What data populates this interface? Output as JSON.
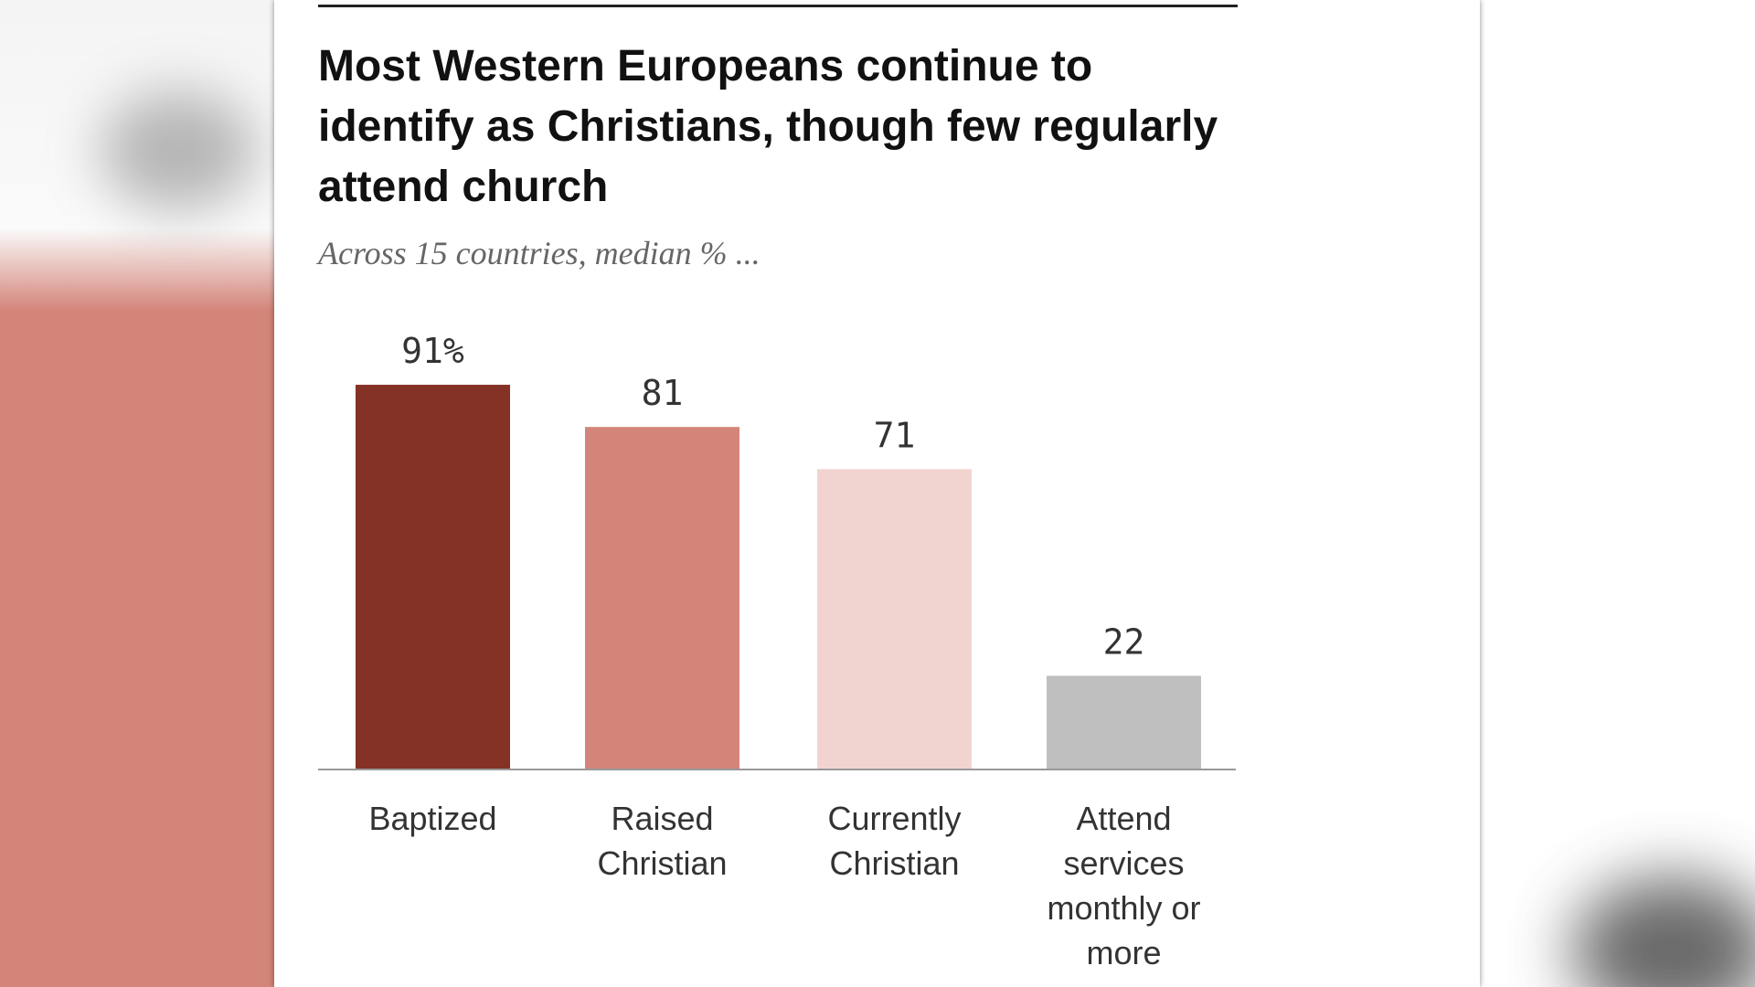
{
  "chart_data": {
    "type": "bar",
    "title": "Most Western Europeans continue to identify as Christians, though few regularly attend church",
    "subtitle": "Across 15 countries, median % ...",
    "categories": [
      [
        "Baptized"
      ],
      [
        "Raised",
        "Christian"
      ],
      [
        "Currently",
        "Christian"
      ],
      [
        "Attend",
        "services",
        "monthly or",
        "more"
      ]
    ],
    "values": [
      91,
      81,
      71,
      22
    ],
    "value_labels": [
      "91%",
      "81",
      "71",
      "22"
    ],
    "colors": [
      "#843126",
      "#d4857a",
      "#f1d4d0",
      "#bfbfbf"
    ],
    "ylim": [
      0,
      100
    ],
    "grid": false,
    "xlabel": "",
    "ylabel": ""
  }
}
